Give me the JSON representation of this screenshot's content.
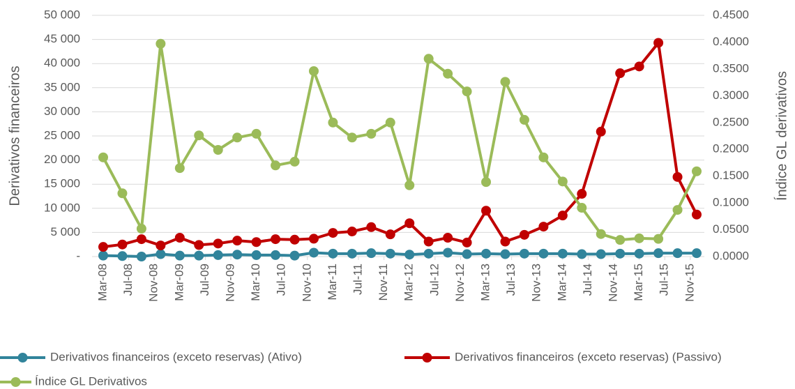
{
  "chart_data": {
    "type": "line",
    "y_label": "Derivativos financeiros",
    "y2_label": "Índice GL derivativos",
    "x": [
      "2008-03",
      "2008-06",
      "2008-09",
      "2008-12",
      "2009-03",
      "2009-06",
      "2009-09",
      "2009-12",
      "2010-03",
      "2010-06",
      "2010-09",
      "2010-12",
      "2011-03",
      "2011-06",
      "2011-09",
      "2011-12",
      "2012-03",
      "2012-06",
      "2012-09",
      "2012-12",
      "2013-03",
      "2013-06",
      "2013-09",
      "2013-12",
      "2014-03",
      "2014-06",
      "2014-09",
      "2014-12",
      "2015-03",
      "2015-06",
      "2015-09",
      "2015-12"
    ],
    "xlim": [
      "2008-03",
      "2015-12"
    ],
    "xticks": [
      {
        "value": "2008-03",
        "label": "Mar-08"
      },
      {
        "value": "2008-07",
        "label": "Jul-08"
      },
      {
        "value": "2008-11",
        "label": "Nov-08"
      },
      {
        "value": "2009-03",
        "label": "Mar-09"
      },
      {
        "value": "2009-07",
        "label": "Jul-09"
      },
      {
        "value": "2009-11",
        "label": "Nov-09"
      },
      {
        "value": "2010-03",
        "label": "Mar-10"
      },
      {
        "value": "2010-07",
        "label": "Jul-10"
      },
      {
        "value": "2010-11",
        "label": "Nov-10"
      },
      {
        "value": "2011-03",
        "label": "Mar-11"
      },
      {
        "value": "2011-07",
        "label": "Jul-11"
      },
      {
        "value": "2011-11",
        "label": "Nov-11"
      },
      {
        "value": "2012-03",
        "label": "Mar-12"
      },
      {
        "value": "2012-07",
        "label": "Jul-12"
      },
      {
        "value": "2012-11",
        "label": "Nov-12"
      },
      {
        "value": "2013-03",
        "label": "Mar-13"
      },
      {
        "value": "2013-07",
        "label": "Jul-13"
      },
      {
        "value": "2013-11",
        "label": "Nov-13"
      },
      {
        "value": "2014-03",
        "label": "Mar-14"
      },
      {
        "value": "2014-07",
        "label": "Jul-14"
      },
      {
        "value": "2014-11",
        "label": "Nov-14"
      },
      {
        "value": "2015-03",
        "label": "Mar-15"
      },
      {
        "value": "2015-07",
        "label": "Jul-15"
      },
      {
        "value": "2015-11",
        "label": "Nov-15"
      }
    ],
    "ylim": [
      0,
      50000
    ],
    "yticks": [
      {
        "value": 0,
        "label": "-"
      },
      {
        "value": 5000,
        "label": "5 000"
      },
      {
        "value": 10000,
        "label": "10 000"
      },
      {
        "value": 15000,
        "label": "15 000"
      },
      {
        "value": 20000,
        "label": "20 000"
      },
      {
        "value": 25000,
        "label": "25 000"
      },
      {
        "value": 30000,
        "label": "30 000"
      },
      {
        "value": 35000,
        "label": "35 000"
      },
      {
        "value": 40000,
        "label": "40 000"
      },
      {
        "value": 45000,
        "label": "45 000"
      },
      {
        "value": 50000,
        "label": "50 000"
      }
    ],
    "y2lim": [
      0,
      0.45
    ],
    "y2ticks": [
      {
        "value": 0,
        "label": "0.0000"
      },
      {
        "value": 0.05,
        "label": "0.0500"
      },
      {
        "value": 0.1,
        "label": "0.1000"
      },
      {
        "value": 0.15,
        "label": "0.1500"
      },
      {
        "value": 0.2,
        "label": "0.2000"
      },
      {
        "value": 0.25,
        "label": "0.2500"
      },
      {
        "value": 0.3,
        "label": "0.3000"
      },
      {
        "value": 0.35,
        "label": "0.3500"
      },
      {
        "value": 0.4,
        "label": "0.4000"
      },
      {
        "value": 0.45,
        "label": "0.4500"
      }
    ],
    "grid": true,
    "series": [
      {
        "name": "Derivativos financeiros (exceto reservas) (Ativo)",
        "color": "#31849b",
        "values": [
          200,
          100,
          0,
          500,
          200,
          200,
          300,
          400,
          300,
          300,
          200,
          800,
          600,
          600,
          700,
          600,
          400,
          600,
          800,
          500,
          600,
          500,
          600,
          600,
          600,
          500,
          500,
          600,
          600,
          700,
          700,
          700
        ]
      },
      {
        "name": "Derivativos financeiros (exceto reservas) (Passivo)",
        "color": "#c00000",
        "values": [
          2000,
          2500,
          3600,
          2300,
          3900,
          2400,
          2700,
          3300,
          3000,
          3600,
          3500,
          3700,
          4900,
          5200,
          6100,
          4600,
          6900,
          3100,
          3900,
          2900,
          9500,
          3100,
          4500,
          6200,
          8500,
          13000,
          25900,
          38000,
          39400,
          44300,
          16500,
          8700
        ]
      },
      {
        "name": "Índice GL Derivativos",
        "color": "#9bbb59",
        "axis": "y2",
        "values": [
          0.185,
          0.118,
          0.052,
          0.397,
          0.165,
          0.226,
          0.199,
          0.222,
          0.229,
          0.17,
          0.177,
          0.346,
          0.25,
          0.222,
          0.229,
          0.25,
          0.133,
          0.369,
          0.341,
          0.308,
          0.139,
          0.326,
          0.255,
          0.185,
          0.14,
          0.091,
          0.042,
          0.031,
          0.034,
          0.033,
          0.087,
          0.159
        ]
      }
    ]
  }
}
